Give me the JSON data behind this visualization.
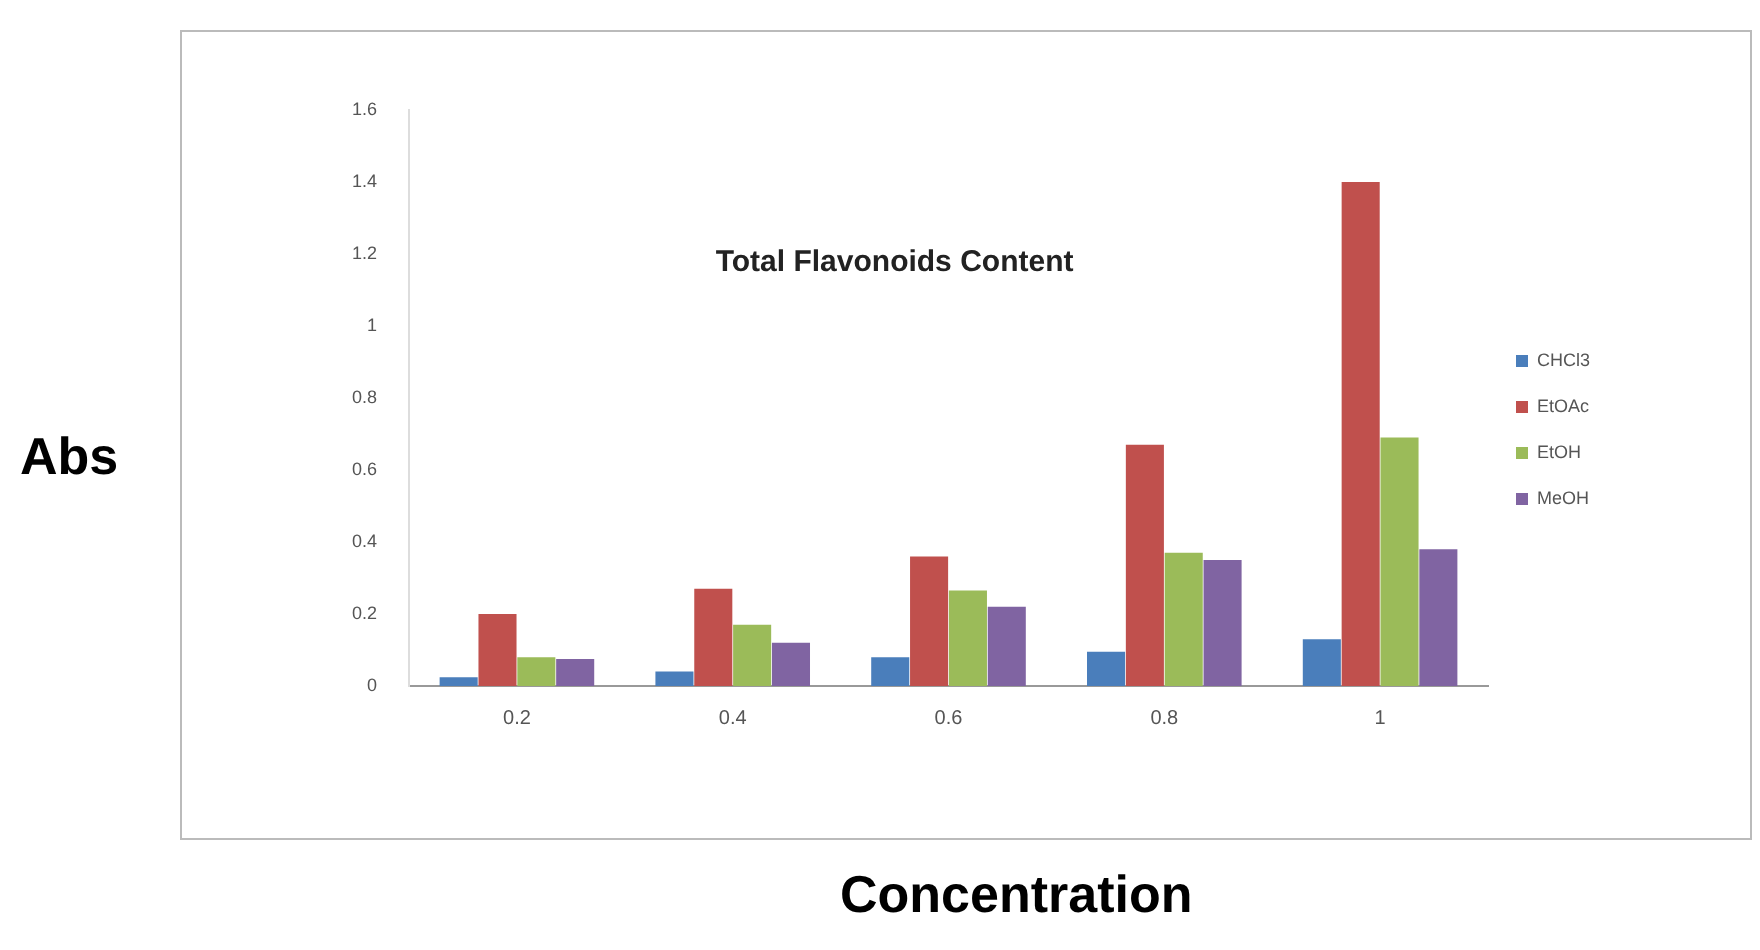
{
  "chart_data": {
    "type": "bar",
    "title": "Total Flavonoids Content",
    "xlabel": "Concentration",
    "ylabel": "Abs",
    "categories": [
      "0.2",
      "0.4",
      "0.6",
      "0.8",
      "1"
    ],
    "series": [
      {
        "name": "CHCl3",
        "color": "#4a7ebb",
        "values": [
          0.024,
          0.04,
          0.08,
          0.095,
          0.13
        ]
      },
      {
        "name": "EtOAc",
        "color": "#c0504d",
        "values": [
          0.2,
          0.27,
          0.36,
          0.67,
          1.4
        ]
      },
      {
        "name": "EtOH",
        "color": "#9bbb59",
        "values": [
          0.08,
          0.17,
          0.265,
          0.37,
          0.69
        ]
      },
      {
        "name": "MeOH",
        "color": "#8064a2",
        "values": [
          0.075,
          0.12,
          0.22,
          0.35,
          0.38
        ]
      }
    ],
    "ylim": [
      0,
      1.6
    ],
    "yticks": [
      0,
      0.2,
      0.4,
      0.6,
      0.8,
      1,
      1.2,
      1.4,
      1.6
    ],
    "grid": false,
    "legend": "right"
  }
}
